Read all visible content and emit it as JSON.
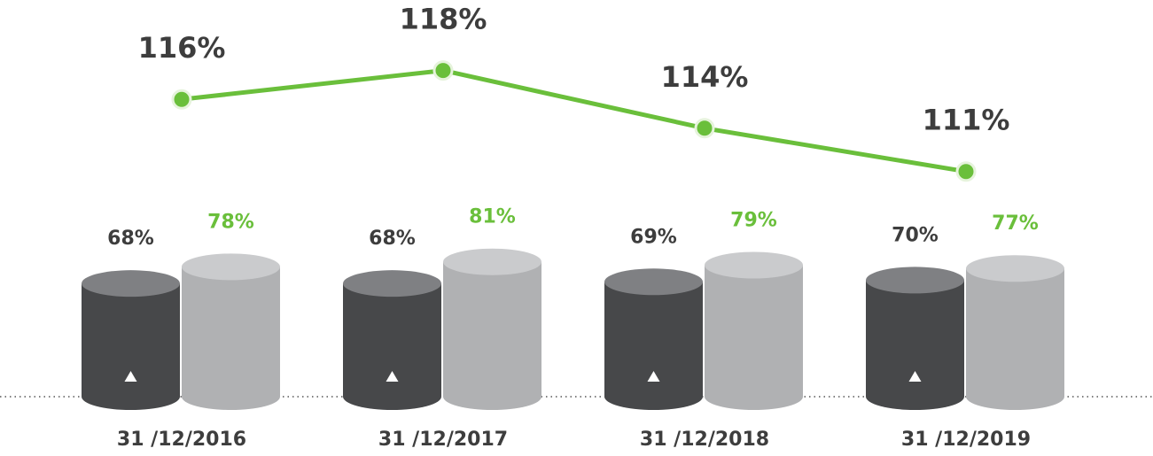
{
  "chart_data": {
    "type": "bar",
    "categories": [
      "31 /12/2016",
      "31 /12/2017",
      "31 /12/2018",
      "31 /12/2019"
    ],
    "series": [
      {
        "type": "bar",
        "color": "#47484a",
        "top_color": "#7f8083",
        "label_color": "#3d3d3d",
        "values": [
          68,
          68,
          69,
          70
        ],
        "value_labels": [
          "68%",
          "68%",
          "69%",
          "70%"
        ]
      },
      {
        "type": "bar",
        "color": "#b0b1b3",
        "top_color": "#cacbcd",
        "label_color": "#6abf3b",
        "values": [
          78,
          81,
          79,
          77
        ],
        "value_labels": [
          "78%",
          "81%",
          "79%",
          "77%"
        ]
      },
      {
        "type": "line",
        "color": "#6abf3b",
        "label_color": "#3d3d3d",
        "values": [
          116,
          118,
          114,
          111
        ],
        "value_labels": [
          "116%",
          "118%",
          "114%",
          "111%"
        ]
      }
    ]
  }
}
